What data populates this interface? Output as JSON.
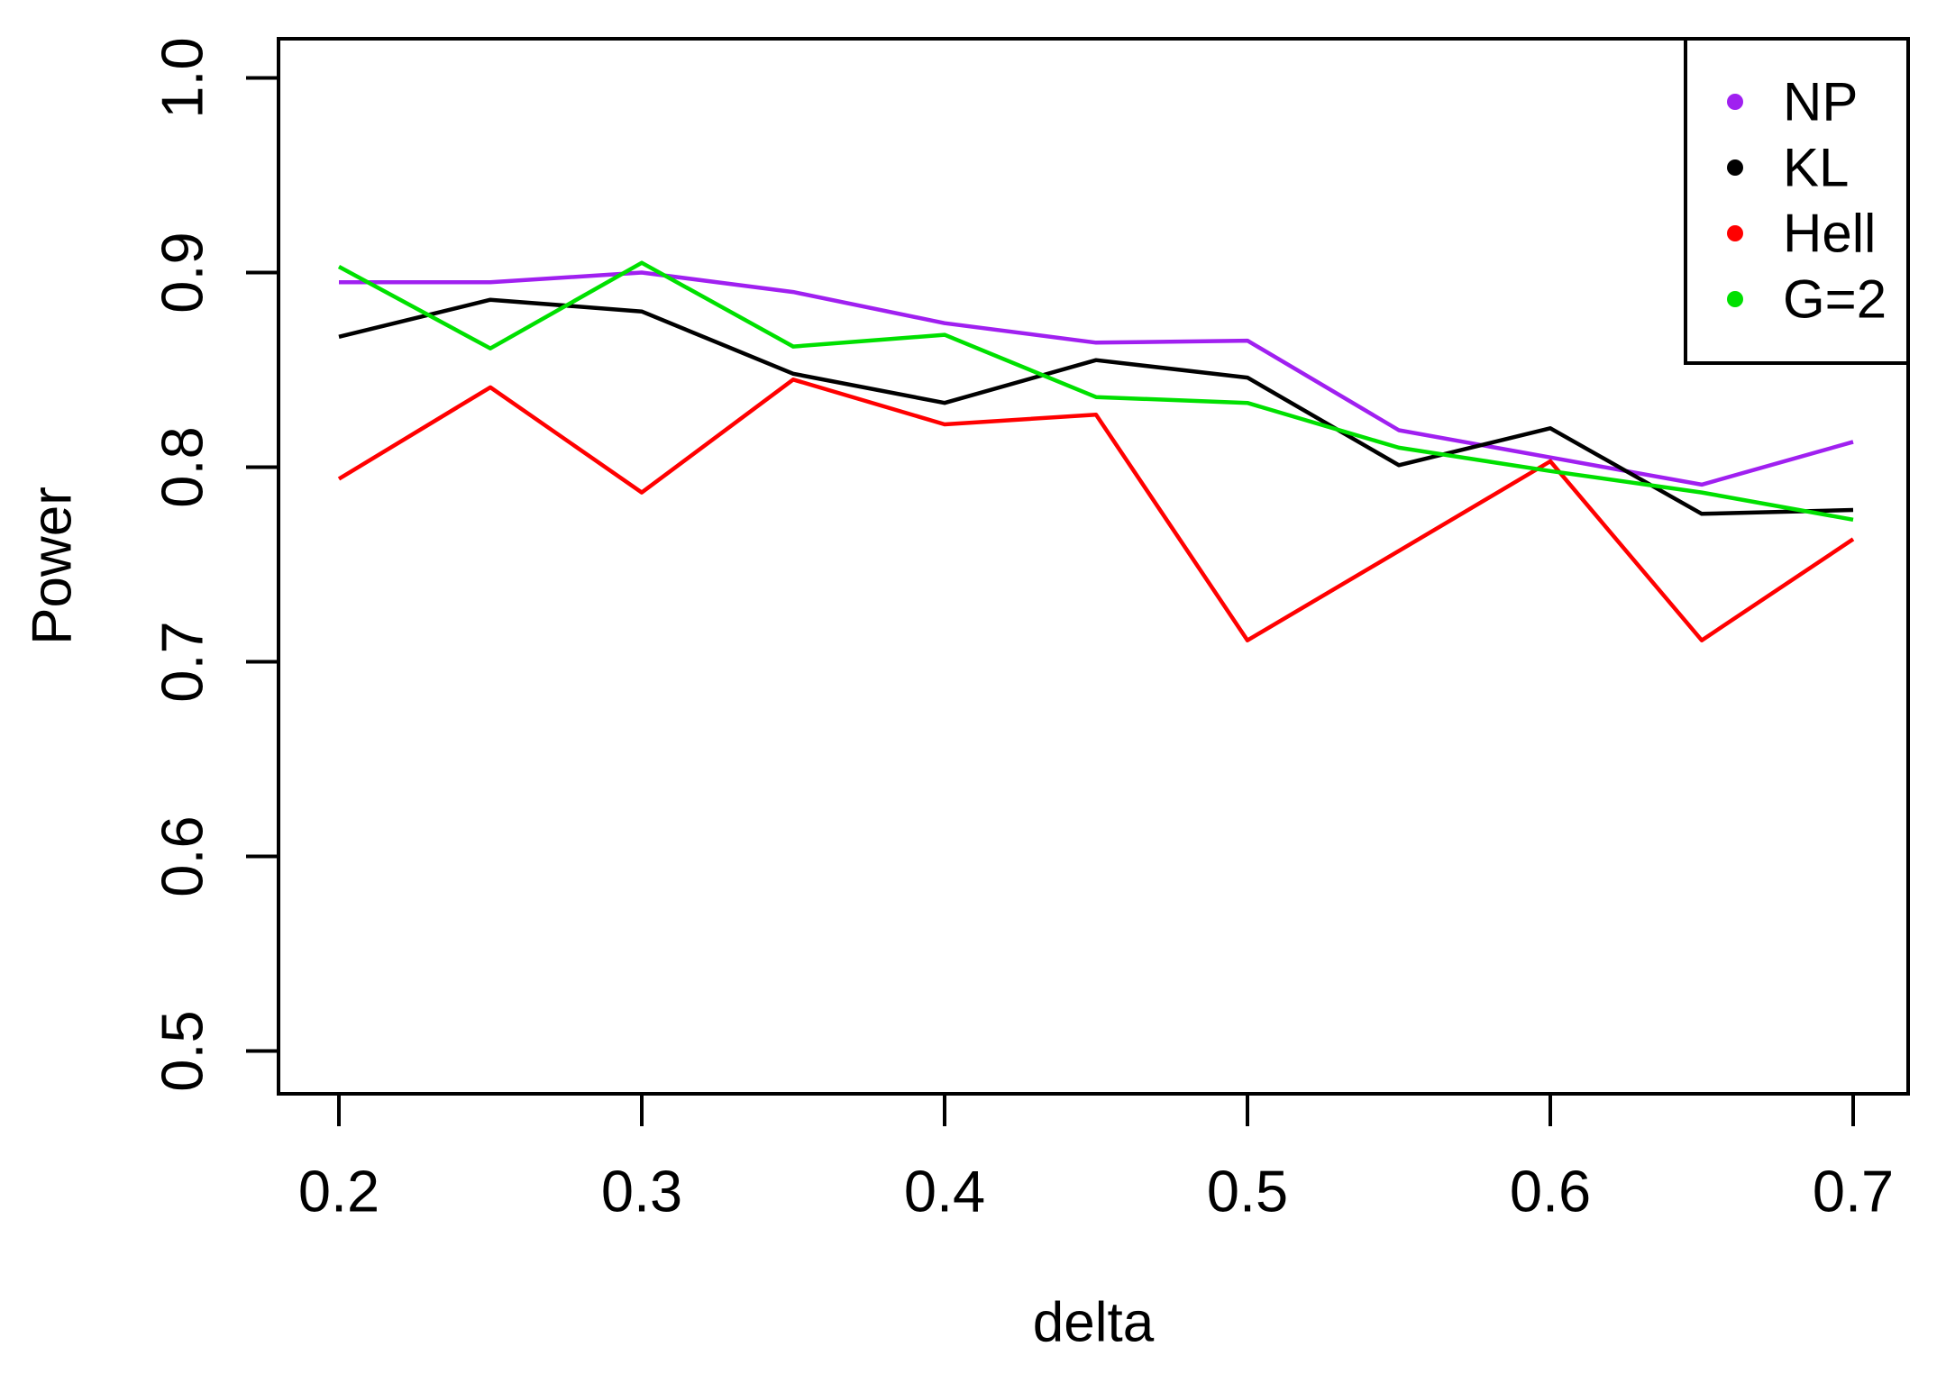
{
  "chart_data": {
    "type": "line",
    "title": "",
    "xlabel": "delta",
    "ylabel": "Power",
    "grid": false,
    "legend_position": "top-right",
    "xlim": [
      0.18,
      0.718
    ],
    "ylim": [
      0.478,
      1.02
    ],
    "x": [
      0.2,
      0.25,
      0.3,
      0.35,
      0.4,
      0.45,
      0.5,
      0.55,
      0.6,
      0.65,
      0.7
    ],
    "x_ticks": [
      0.2,
      0.3,
      0.4,
      0.5,
      0.6,
      0.7
    ],
    "x_tick_labels": [
      "0.2",
      "0.3",
      "0.4",
      "0.5",
      "0.6",
      "0.7"
    ],
    "y_ticks": [
      1.0,
      0.9,
      0.8,
      0.7,
      0.6,
      0.5
    ],
    "y_tick_labels": [
      "1.0",
      "0.9",
      "0.8",
      "0.7",
      "0.6",
      "0.5"
    ],
    "series": [
      {
        "name": "NP",
        "color": "#A020F0",
        "values": [
          0.895,
          0.895,
          0.9,
          0.89,
          0.874,
          0.864,
          0.865,
          0.819,
          0.805,
          0.791,
          0.813
        ]
      },
      {
        "name": "KL",
        "color": "#000000",
        "values": [
          0.867,
          0.886,
          0.88,
          0.848,
          0.833,
          0.855,
          0.846,
          0.801,
          0.82,
          0.776,
          0.778
        ]
      },
      {
        "name": "Hell",
        "color": "#FF0000",
        "values": [
          0.794,
          0.841,
          0.787,
          0.845,
          0.822,
          0.827,
          0.711,
          0.757,
          0.803,
          0.711,
          0.763
        ]
      },
      {
        "name": "G=2",
        "color": "#00E000",
        "values": [
          0.903,
          0.861,
          0.905,
          0.862,
          0.868,
          0.836,
          0.833,
          0.81,
          0.798,
          0.787,
          0.773
        ]
      }
    ]
  }
}
